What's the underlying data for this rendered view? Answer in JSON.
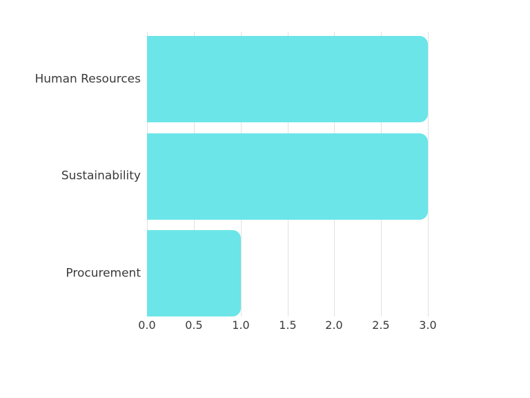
{
  "chart_data": {
    "type": "bar",
    "orientation": "horizontal",
    "title": "",
    "xlabel": "",
    "ylabel": "",
    "categories": [
      "Human Resources",
      "Sustainability",
      "Procurement"
    ],
    "values": [
      3,
      3,
      1
    ],
    "xlim": [
      0,
      3
    ],
    "x_tick_values": [
      0,
      0.5,
      1,
      1.5,
      2,
      2.5,
      3
    ],
    "x_tick_labels": [
      "0.0",
      "0.5",
      "1.0",
      "1.5",
      "2.0",
      "2.5",
      "3.0"
    ],
    "grid": "vertical-gridlines-on",
    "legend_position": "none",
    "colors": {
      "bar_fill": "#6ce5e8",
      "gridline": "#e0e0e0",
      "label_text": "#3a3a3a",
      "background": "#ffffff"
    }
  }
}
